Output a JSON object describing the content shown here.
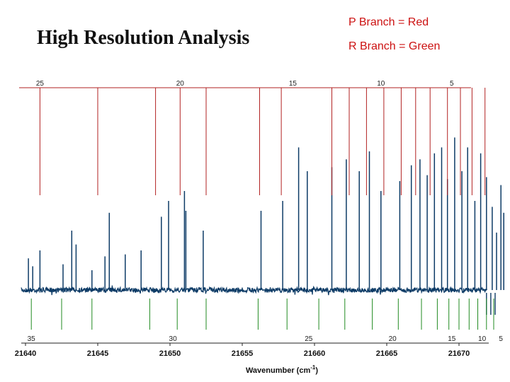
{
  "slide": {
    "title": "High Resolution Analysis",
    "legend_p": "P Branch = Red",
    "legend_r": "R Branch = Green"
  },
  "chart_data": {
    "type": "line",
    "title": "High Resolution Analysis",
    "xlabel": "Wavenumber (cm",
    "xlabel_sup": "-1",
    "xlabel_end": ")",
    "xlim": [
      21640,
      21673.5
    ],
    "xticks": [
      21640,
      21645,
      21650,
      21655,
      21660,
      21665,
      21670
    ],
    "colors": {
      "p_branch": "#b22222",
      "r_branch": "#228b22",
      "spectrum": "#0d3b66",
      "text": "#cc1111"
    },
    "p_branch": {
      "name": "P Branch",
      "lines": [
        21641,
        21645,
        21649,
        21650.7,
        21652.5,
        21656.2,
        21657.7,
        21661.2,
        21662.4,
        21663.6,
        21664.8,
        21666,
        21667,
        21668,
        21669.2,
        21670.1,
        21670.9,
        21671.8
      ],
      "labels": [
        {
          "j": "25",
          "x": 21641
        },
        {
          "j": "20",
          "x": 21650.7
        },
        {
          "j": "15",
          "x": 21658.5
        },
        {
          "j": "10",
          "x": 21664.6
        },
        {
          "j": "5",
          "x": 21669.5
        }
      ]
    },
    "r_branch": {
      "name": "R Branch",
      "lines": [
        21640.4,
        21642.5,
        21644.6,
        21648.6,
        21650.5,
        21652.5,
        21656.1,
        21658.1,
        21660.3,
        21662.1,
        21664,
        21665.8,
        21667.4,
        21668.5,
        21669.3,
        21670,
        21670.7,
        21671.3,
        21671.9,
        21672.4
      ],
      "labels": [
        {
          "j": "35",
          "x": 21640.4
        },
        {
          "j": "30",
          "x": 21650.2
        },
        {
          "j": "25",
          "x": 21659.6
        },
        {
          "j": "20",
          "x": 21665.4
        },
        {
          "j": "15",
          "x": 21669.5
        },
        {
          "j": "10",
          "x": 21671.6
        },
        {
          "j": "5",
          "x": 21672.9
        }
      ]
    },
    "peaks": [
      {
        "x": 21640.2,
        "h": 0.16
      },
      {
        "x": 21640.5,
        "h": 0.12
      },
      {
        "x": 21641,
        "h": 0.2
      },
      {
        "x": 21642.6,
        "h": 0.13
      },
      {
        "x": 21643.2,
        "h": 0.3
      },
      {
        "x": 21643.5,
        "h": 0.23
      },
      {
        "x": 21644.6,
        "h": 0.1
      },
      {
        "x": 21645.5,
        "h": 0.17
      },
      {
        "x": 21645.8,
        "h": 0.39
      },
      {
        "x": 21646.9,
        "h": 0.18
      },
      {
        "x": 21648,
        "h": 0.2
      },
      {
        "x": 21649.4,
        "h": 0.37
      },
      {
        "x": 21649.9,
        "h": 0.45
      },
      {
        "x": 21651,
        "h": 0.5
      },
      {
        "x": 21651.1,
        "h": 0.4
      },
      {
        "x": 21652.3,
        "h": 0.3
      },
      {
        "x": 21656.3,
        "h": 0.4
      },
      {
        "x": 21657.8,
        "h": 0.45
      },
      {
        "x": 21658.9,
        "h": 0.72
      },
      {
        "x": 21659.5,
        "h": 0.6
      },
      {
        "x": 21661.2,
        "h": 0.62
      },
      {
        "x": 21662.2,
        "h": 0.66
      },
      {
        "x": 21663.1,
        "h": 0.6
      },
      {
        "x": 21663.8,
        "h": 0.7
      },
      {
        "x": 21664.6,
        "h": 0.5
      },
      {
        "x": 21665.9,
        "h": 0.55
      },
      {
        "x": 21666.7,
        "h": 0.63
      },
      {
        "x": 21667.3,
        "h": 0.66
      },
      {
        "x": 21667.8,
        "h": 0.58
      },
      {
        "x": 21668.3,
        "h": 0.69
      },
      {
        "x": 21668.8,
        "h": 0.72
      },
      {
        "x": 21669.2,
        "h": 0.56
      },
      {
        "x": 21669.7,
        "h": 0.77
      },
      {
        "x": 21670.2,
        "h": 0.6
      },
      {
        "x": 21670.6,
        "h": 0.72
      },
      {
        "x": 21671.1,
        "h": 0.45
      },
      {
        "x": 21671.5,
        "h": 0.69
      },
      {
        "x": 21671.9,
        "h": 0.57
      },
      {
        "x": 21672.3,
        "h": 0.42
      },
      {
        "x": 21672.6,
        "h": 0.29
      },
      {
        "x": 21672.9,
        "h": 0.53
      },
      {
        "x": 21673.1,
        "h": 0.39
      }
    ]
  }
}
